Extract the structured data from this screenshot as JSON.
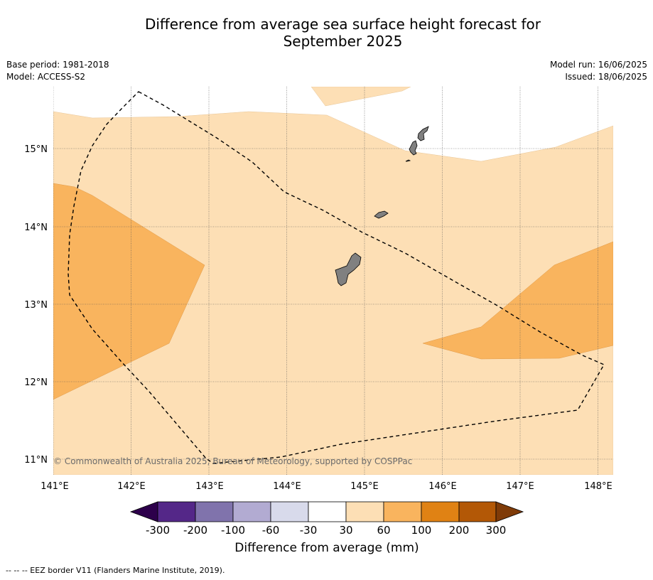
{
  "title_line1": "Difference from average sea surface height forecast for",
  "title_line2": "September 2025",
  "meta_left": {
    "base_period": "Base period: 1981-2018",
    "model": "Model: ACCESS-S2"
  },
  "meta_right": {
    "model_run": "Model run: 16/06/2025",
    "issued": "Issued: 18/06/2025"
  },
  "map": {
    "lon_range": [
      141.0,
      148.2
    ],
    "lat_range": [
      10.8,
      15.8
    ],
    "lon_ticks": [
      141,
      142,
      143,
      144,
      145,
      146,
      147,
      148
    ],
    "lat_ticks": [
      11,
      12,
      13,
      14,
      15
    ],
    "lon_tick_labels": [
      "141°E",
      "142°E",
      "143°E",
      "144°E",
      "145°E",
      "146°E",
      "147°E",
      "148°E"
    ],
    "lat_tick_labels": [
      "11°N",
      "12°N",
      "13°N",
      "14°N",
      "15°N"
    ],
    "grid": true,
    "copyright": "© Commonwealth of Australia 2025, Bureau of Meteorology, supported by COSPPac",
    "colors": {
      "land": "#808080",
      "class_30_60": "#fddfb5",
      "class_60_100": "#f9b45e"
    }
  },
  "colorbar": {
    "title": "Difference from average (mm)",
    "tick_labels": [
      "-300",
      "-200",
      "-100",
      "-60",
      "-30",
      "30",
      "60",
      "100",
      "200",
      "300"
    ],
    "colors": [
      "#2d004b",
      "#542788",
      "#8073ac",
      "#b2abd2",
      "#d8daeb",
      "#ffffff",
      "#fddfb5",
      "#f9b45e",
      "#e08214",
      "#b35806",
      "#7f3b08"
    ]
  },
  "footnote": "--  --  -- EEZ border V11 (Flanders Marine Institute, 2019)."
}
